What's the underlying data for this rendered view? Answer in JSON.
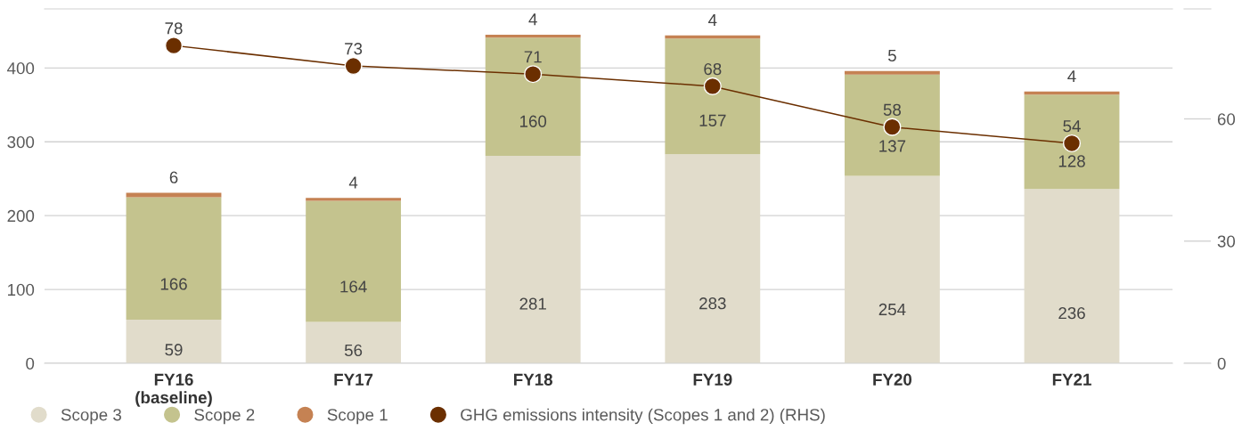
{
  "chart_data": {
    "type": "bar",
    "stacked": true,
    "categories": [
      "FY16\n(baseline)",
      "FY17",
      "FY18",
      "FY19",
      "FY20",
      "FY21"
    ],
    "series": [
      {
        "name": "Scope 3",
        "color": "#e1dccb",
        "values": [
          59,
          56,
          281,
          283,
          254,
          236
        ]
      },
      {
        "name": "Scope 2",
        "color": "#c4c38e",
        "values": [
          166,
          164,
          160,
          157,
          137,
          128
        ]
      },
      {
        "name": "Scope 1",
        "color": "#c58253",
        "values": [
          6,
          4,
          4,
          4,
          5,
          4
        ]
      },
      {
        "name": "GHG emissions intensity (Scopes 1 and 2) (RHS)",
        "type": "line",
        "axis": "y2",
        "color": "#6b2f00",
        "values": [
          78,
          73,
          71,
          68,
          58,
          54
        ]
      }
    ],
    "ylim": [
      0,
      480
    ],
    "yticks": [
      0,
      100,
      200,
      300,
      400
    ],
    "y2lim": [
      0,
      87
    ],
    "y2ticks": [
      0,
      30,
      60
    ],
    "grid": "y",
    "legend": "bottom",
    "marker": "circle",
    "line_style": "solid",
    "data_labels": true
  }
}
